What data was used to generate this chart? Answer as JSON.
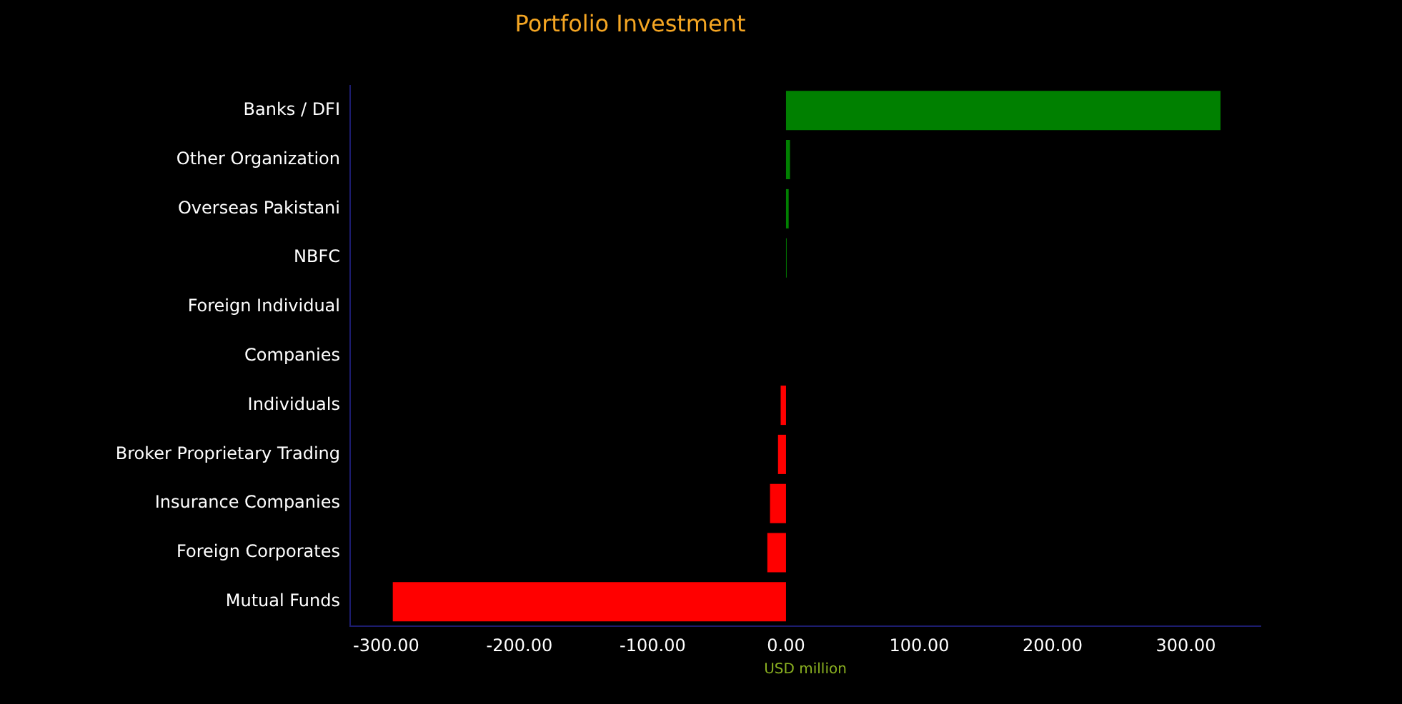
{
  "chart_data": {
    "type": "bar",
    "orientation": "horizontal",
    "title": "Portfolio Investment",
    "xlabel": "USD million",
    "categories": [
      "Banks / DFI",
      "Other Organization",
      "Overseas Pakistani",
      "NBFC",
      "Foreign Individual",
      "Companies",
      "Individuals",
      "Broker Proprietary Trading",
      "Insurance Companies",
      "Foreign Corporates",
      "Mutual Funds"
    ],
    "values": [
      326,
      3,
      2,
      0.5,
      0,
      0,
      -4,
      -6,
      -12,
      -14,
      -295
    ],
    "colors": [
      "#008000",
      "#008000",
      "#008000",
      "#008000",
      "#008000",
      "#008000",
      "#ff0000",
      "#ff0000",
      "#ff0000",
      "#ff0000",
      "#ff0000"
    ],
    "xlim": [
      -327,
      356
    ],
    "xticks": [
      {
        "value": -300,
        "label": "-300.00"
      },
      {
        "value": -200,
        "label": "-200.00"
      },
      {
        "value": -100,
        "label": "-100.00"
      },
      {
        "value": 0,
        "label": "0.00"
      },
      {
        "value": 100,
        "label": "100.00"
      },
      {
        "value": 200,
        "label": "200.00"
      },
      {
        "value": 300,
        "label": "300.00"
      }
    ],
    "grid": false
  }
}
